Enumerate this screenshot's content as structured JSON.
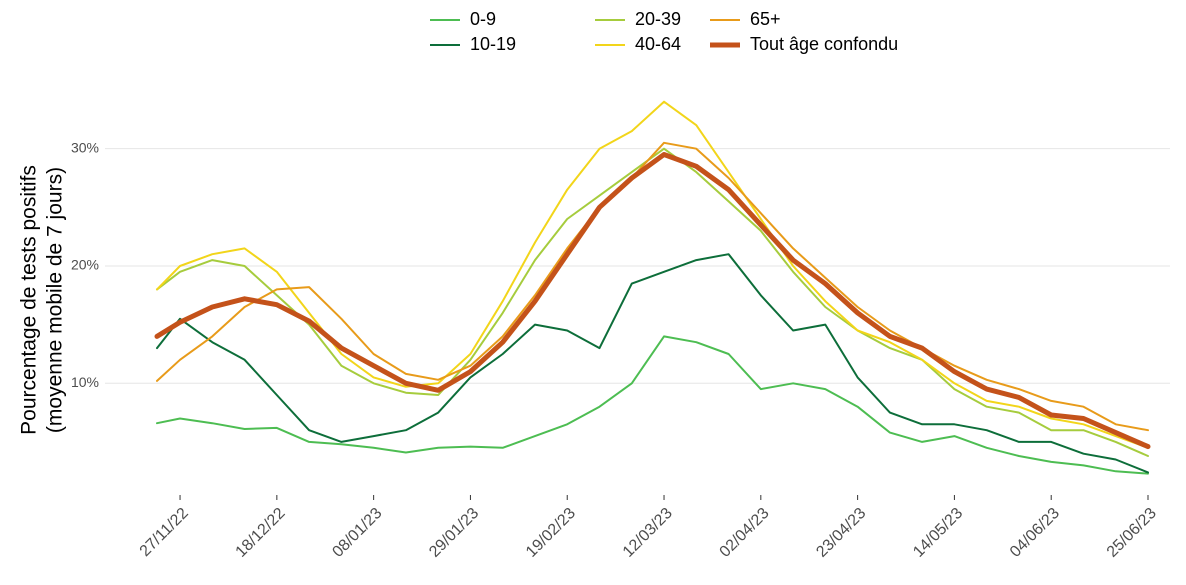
{
  "chart_data": {
    "type": "line",
    "ylabel": [
      "Pourcentage de tests positifs",
      "(moyenne mobile de 7 jours)"
    ],
    "x": [
      "2022-11-22",
      "2022-11-27",
      "2022-12-04",
      "2022-12-11",
      "2022-12-18",
      "2022-12-25",
      "2023-01-01",
      "2023-01-08",
      "2023-01-15",
      "2023-01-22",
      "2023-01-29",
      "2023-02-05",
      "2023-02-12",
      "2023-02-19",
      "2023-02-26",
      "2023-03-05",
      "2023-03-12",
      "2023-03-19",
      "2023-03-26",
      "2023-04-02",
      "2023-04-09",
      "2023-04-16",
      "2023-04-23",
      "2023-04-30",
      "2023-05-07",
      "2023-05-14",
      "2023-05-21",
      "2023-05-28",
      "2023-06-04",
      "2023-06-11",
      "2023-06-18",
      "2023-06-25"
    ],
    "xlim": [
      "2022-11-22",
      "2023-06-25"
    ],
    "xticks": [
      {
        "value": "2022-11-27",
        "label": "27/11/22"
      },
      {
        "value": "2022-12-18",
        "label": "18/12/22"
      },
      {
        "value": "2023-01-08",
        "label": "08/01/23"
      },
      {
        "value": "2023-01-29",
        "label": "29/01/23"
      },
      {
        "value": "2023-02-19",
        "label": "19/02/23"
      },
      {
        "value": "2023-03-12",
        "label": "12/03/23"
      },
      {
        "value": "2023-04-02",
        "label": "02/04/23"
      },
      {
        "value": "2023-04-23",
        "label": "23/04/23"
      },
      {
        "value": "2023-05-14",
        "label": "14/05/23"
      },
      {
        "value": "2023-06-04",
        "label": "04/06/23"
      },
      {
        "value": "2023-06-25",
        "label": "25/06/23"
      }
    ],
    "ylim": [
      1.5,
      35
    ],
    "yticks": [
      {
        "value": 10,
        "label": "10%"
      },
      {
        "value": 20,
        "label": "20%"
      },
      {
        "value": 30,
        "label": "30%"
      }
    ],
    "grid": true,
    "legend": "top",
    "series": [
      {
        "name": "0-9",
        "color": "#4dbd52",
        "width": 2,
        "values": [
          6.6,
          7,
          6.6,
          6.1,
          6.2,
          5,
          4.8,
          4.5,
          4.1,
          4.5,
          4.6,
          4.5,
          5.5,
          6.5,
          8,
          10,
          14,
          13.5,
          12.5,
          9.5,
          10,
          9.5,
          8,
          5.8,
          5,
          5.5,
          4.5,
          3.8,
          3.3,
          3,
          2.5,
          2.3
        ]
      },
      {
        "name": "10-19",
        "color": "#0d6e3a",
        "width": 2,
        "values": [
          13,
          15.5,
          13.5,
          12,
          9,
          6,
          5,
          5.5,
          6,
          7.5,
          10.5,
          12.5,
          15,
          14.5,
          13,
          18.5,
          19.5,
          20.5,
          21,
          17.5,
          14.5,
          15,
          10.5,
          7.5,
          6.5,
          6.5,
          6,
          5,
          5,
          4,
          3.5,
          2.4
        ]
      },
      {
        "name": "20-39",
        "color": "#a6cc3d",
        "width": 2,
        "values": [
          18,
          19.5,
          20.5,
          20,
          17.5,
          15,
          11.5,
          10,
          9.2,
          9,
          12,
          16,
          20.5,
          24,
          26,
          28,
          30,
          28,
          25.5,
          23,
          19.5,
          16.5,
          14.5,
          13,
          12,
          9.5,
          8,
          7.5,
          6,
          6,
          5,
          3.8
        ]
      },
      {
        "name": "40-64",
        "color": "#f2d51a",
        "width": 2,
        "values": [
          18,
          20,
          21,
          21.5,
          19.5,
          16,
          12.5,
          10.5,
          9.7,
          10,
          12.5,
          17,
          22,
          26.5,
          30,
          31.5,
          34,
          32,
          28,
          24,
          20,
          17,
          14.5,
          13.5,
          12,
          10,
          8.5,
          8,
          7,
          6.5,
          5.5,
          4.5
        ]
      },
      {
        "name": "65+",
        "color": "#e89b1a",
        "width": 2,
        "values": [
          10.2,
          12,
          14,
          16.5,
          18,
          18.2,
          15.5,
          12.5,
          10.8,
          10.3,
          11.5,
          14,
          17.5,
          21.5,
          25,
          27.5,
          30.5,
          30,
          27.5,
          24.5,
          21.5,
          19,
          16.5,
          14.5,
          13,
          11.5,
          10.3,
          9.5,
          8.5,
          8,
          6.5,
          6
        ]
      },
      {
        "name": "Tout âge confondu",
        "color": "#c4521a",
        "width": 5,
        "values": [
          14,
          15.2,
          16.5,
          17.2,
          16.7,
          15.3,
          13,
          11.5,
          10,
          9.4,
          11,
          13.5,
          17,
          21,
          25,
          27.5,
          29.5,
          28.5,
          26.5,
          23.5,
          20.5,
          18.5,
          16,
          14,
          13,
          11,
          9.5,
          8.8,
          7.3,
          7,
          5.8,
          4.6
        ]
      }
    ]
  }
}
